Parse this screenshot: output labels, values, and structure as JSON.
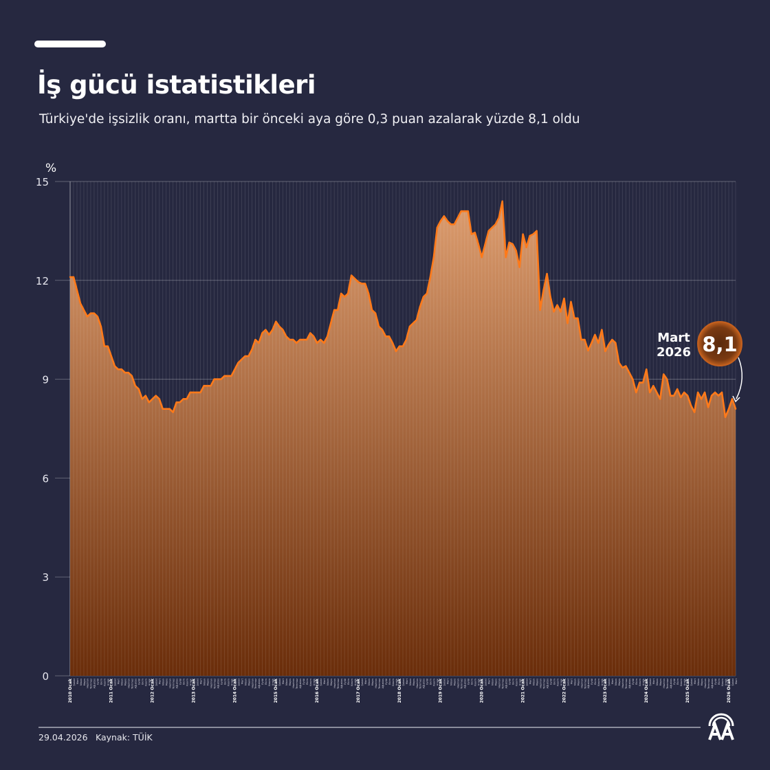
{
  "header": {
    "title": "İş gücü istatistikleri",
    "subtitle": "Türkiye'de işsizlik oranı, martta bir önceki aya göre 0,3 puan azalarak yüzde 8,1 oldu"
  },
  "footer": {
    "date": "29.04.2026",
    "source": "Kaynak: TÜİK",
    "logo_text": "AA"
  },
  "colors": {
    "background": "#262840",
    "line": "#ff7a1a",
    "fill_top": "#dc9c6e",
    "fill_bottom": "#6a2d0a"
  },
  "chart_data": {
    "type": "area",
    "ylabel": "%",
    "ylim": [
      0,
      15
    ],
    "yticks": [
      "0",
      "3",
      "6",
      "9",
      "12",
      "15"
    ],
    "grid": true,
    "start_year": 2010,
    "month_names": [
      "Ocak",
      "Şubat",
      "Mart",
      "Nisan",
      "Mayıs",
      "Haziran",
      "Temmuz",
      "Ağustos",
      "Eylül",
      "Ekim",
      "Kasım",
      "Aralık"
    ],
    "years": [
      {
        "year": "2010",
        "label": "2010 Ocak",
        "values": [
          12.1,
          12.1,
          11.7,
          11.3,
          11.1,
          10.9,
          11.0,
          11.0,
          10.9,
          10.6,
          10.0,
          10.0
        ]
      },
      {
        "year": "2011",
        "label": "2011 Ocak",
        "values": [
          9.7,
          9.4,
          9.3,
          9.3,
          9.2,
          9.2,
          9.1,
          8.8,
          8.7,
          8.4,
          8.5,
          8.3
        ]
      },
      {
        "year": "2012",
        "label": "2012 Ocak",
        "values": [
          8.4,
          8.5,
          8.4,
          8.1,
          8.1,
          8.1,
          8.0,
          8.3,
          8.3,
          8.4,
          8.4,
          8.6
        ]
      },
      {
        "year": "2013",
        "label": "2013 Ocak",
        "values": [
          8.6,
          8.6,
          8.6,
          8.8,
          8.8,
          8.8,
          9.0,
          9.0,
          9.0,
          9.1,
          9.1,
          9.1
        ]
      },
      {
        "year": "2014",
        "label": "2014 Ocak",
        "values": [
          9.3,
          9.5,
          9.6,
          9.7,
          9.7,
          9.9,
          10.2,
          10.1,
          10.4,
          10.5,
          10.35,
          10.5
        ]
      },
      {
        "year": "2015",
        "label": "2015 Ocak",
        "values": [
          10.75,
          10.6,
          10.5,
          10.3,
          10.2,
          10.2,
          10.1,
          10.2,
          10.2,
          10.2,
          10.4,
          10.3
        ]
      },
      {
        "year": "2016",
        "label": "2016 Ocak",
        "values": [
          10.1,
          10.2,
          10.1,
          10.3,
          10.7,
          11.1,
          11.1,
          11.6,
          11.5,
          11.6,
          12.15,
          12.05
        ]
      },
      {
        "year": "2017",
        "label": "2017 Ocak",
        "values": [
          11.95,
          11.9,
          11.9,
          11.6,
          11.1,
          11.0,
          10.6,
          10.5,
          10.3,
          10.3,
          10.1,
          9.85
        ]
      },
      {
        "year": "2018",
        "label": "2018 Ocak",
        "values": [
          10.0,
          10.0,
          10.2,
          10.6,
          10.7,
          10.8,
          11.2,
          11.5,
          11.6,
          12.1,
          12.7,
          13.6
        ]
      },
      {
        "year": "2019",
        "label": "2019 Ocak",
        "values": [
          13.8,
          13.95,
          13.8,
          13.7,
          13.7,
          13.9,
          14.1,
          14.1,
          14.1,
          13.4,
          13.45,
          13.1
        ]
      },
      {
        "year": "2020",
        "label": "2020 Ocak",
        "values": [
          12.7,
          13.1,
          13.5,
          13.6,
          13.7,
          13.9,
          14.4,
          12.7,
          13.15,
          13.1,
          12.9,
          12.4
        ]
      },
      {
        "year": "2021",
        "label": "2021 Ocak",
        "values": [
          13.4,
          13.0,
          13.35,
          13.4,
          13.5,
          11.1,
          11.7,
          12.2,
          11.5,
          11.05,
          11.25,
          11.05
        ]
      },
      {
        "year": "2022",
        "label": "2022 Ocak",
        "values": [
          11.45,
          10.7,
          11.35,
          10.85,
          10.85,
          10.2,
          10.2,
          9.87,
          10.1,
          10.35,
          10.1,
          10.5
        ]
      },
      {
        "year": "2023",
        "label": "2023 Ocak",
        "values": [
          9.85,
          10.05,
          10.2,
          10.1,
          9.5,
          9.35,
          9.4,
          9.2,
          9.0,
          8.6,
          8.9,
          8.9
        ]
      },
      {
        "year": "2024",
        "label": "2024 Ocak",
        "values": [
          9.3,
          8.6,
          8.8,
          8.6,
          8.4,
          9.15,
          9.0,
          8.5,
          8.5,
          8.7,
          8.45,
          8.6
        ]
      },
      {
        "year": "2025",
        "label": "2025 Ocak",
        "values": [
          8.5,
          8.2,
          8.0,
          8.6,
          8.4,
          8.6,
          8.15,
          8.5,
          8.6,
          8.5,
          8.6,
          7.85
        ]
      },
      {
        "year": "2026",
        "label": "2026 Ocak",
        "values": [
          8.1,
          8.4,
          8.1
        ]
      }
    ],
    "annotation": {
      "period_line1": "Mart",
      "period_line2": "2026",
      "value": "8,1"
    }
  }
}
